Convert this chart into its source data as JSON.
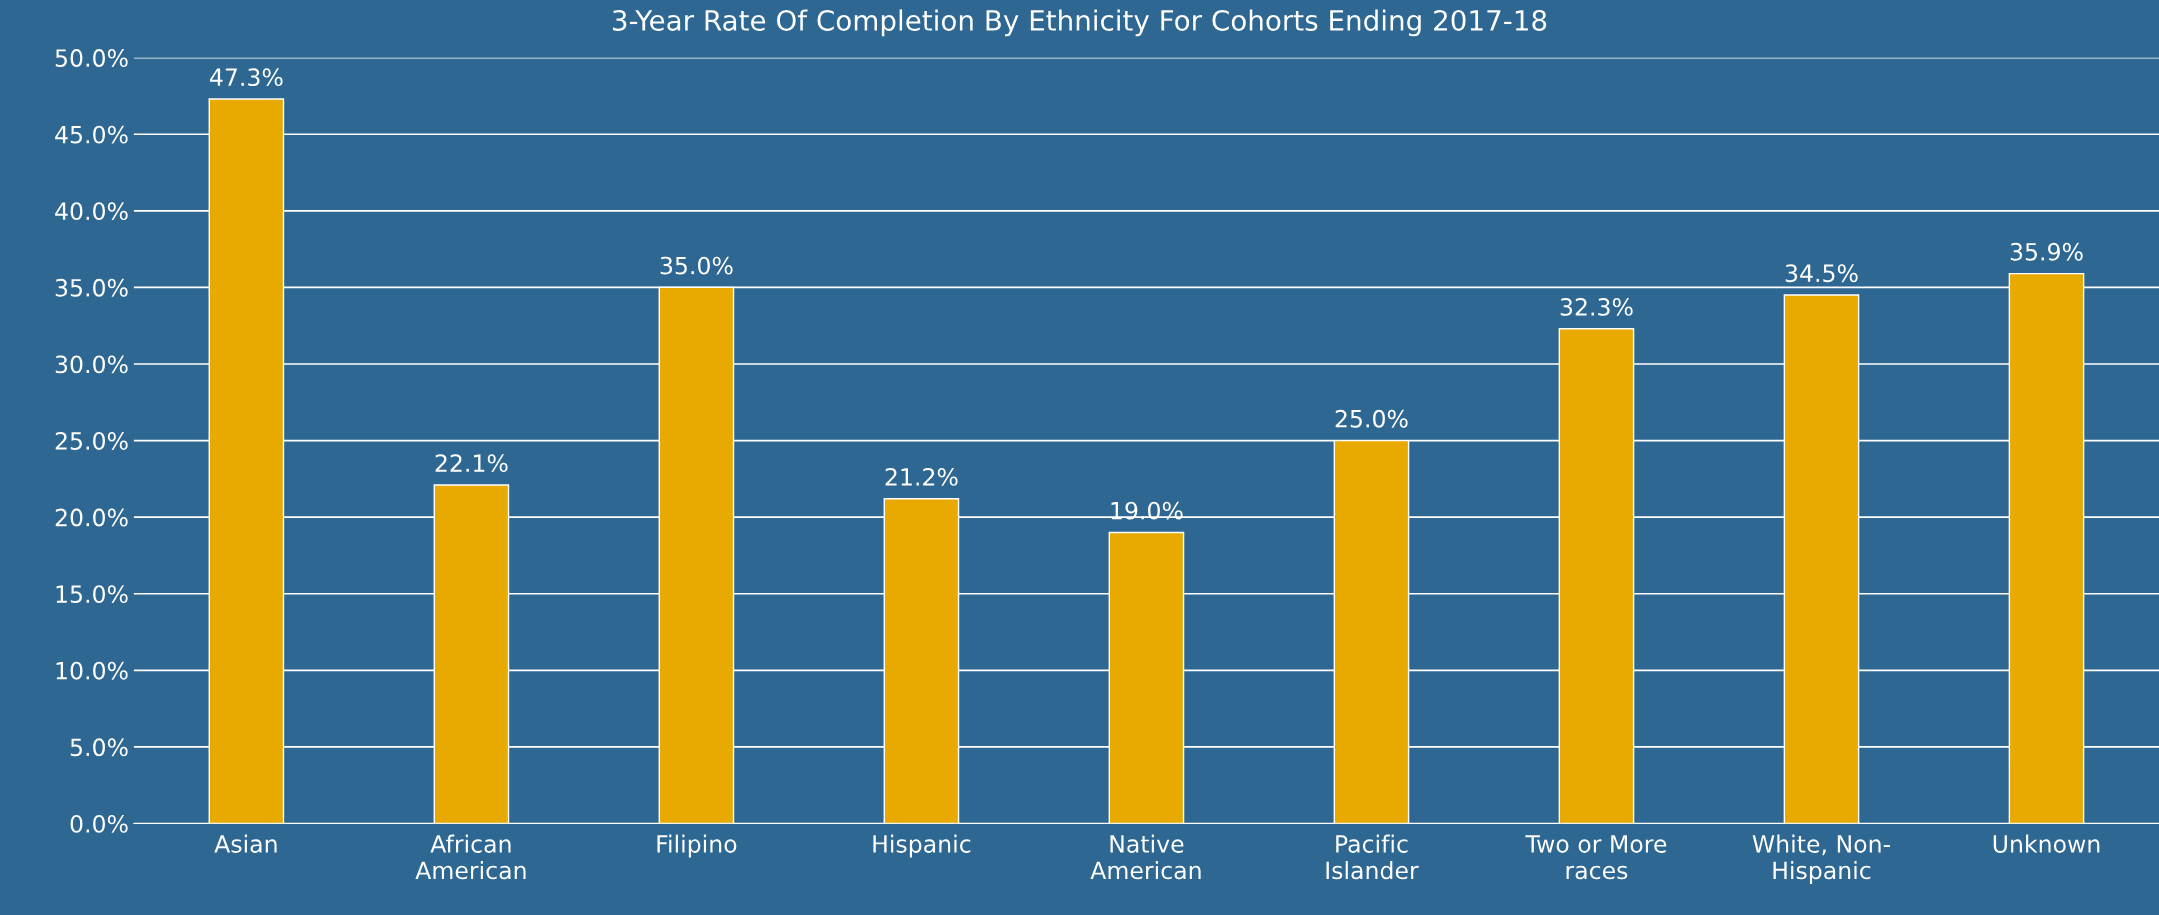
{
  "chart_data": {
    "type": "bar",
    "title": "3-Year Rate Of Completion By Ethnicity For Cohorts Ending 2017-18",
    "categories": [
      "Asian",
      "African\nAmerican",
      "Filipino",
      "Hispanic",
      "Native\nAmerican",
      "Pacific\nIslander",
      "Two or More\nraces",
      "White, Non-\nHispanic",
      "Unknown"
    ],
    "values": [
      47.3,
      22.1,
      35.0,
      21.2,
      19.0,
      25.0,
      32.3,
      34.5,
      35.9
    ],
    "value_labels": [
      "47.3%",
      "22.1%",
      "35.0%",
      "21.2%",
      "19.0%",
      "25.0%",
      "32.3%",
      "34.5%",
      "35.9%"
    ],
    "color": "#e8a900",
    "ylim": [
      0,
      50
    ],
    "yticks": [
      {
        "value": 0,
        "label": "0.0%"
      },
      {
        "value": 5,
        "label": "5.0%"
      },
      {
        "value": 10,
        "label": "10.0%"
      },
      {
        "value": 15,
        "label": "15.0%"
      },
      {
        "value": 20,
        "label": "20.0%"
      },
      {
        "value": 25,
        "label": "25.0%"
      },
      {
        "value": 30,
        "label": "30.0%"
      },
      {
        "value": 35,
        "label": "35.0%"
      },
      {
        "value": 40,
        "label": "40.0%"
      },
      {
        "value": 45,
        "label": "45.0%"
      },
      {
        "value": 50,
        "label": "50.0%"
      }
    ],
    "grid": "y",
    "legend": false
  }
}
